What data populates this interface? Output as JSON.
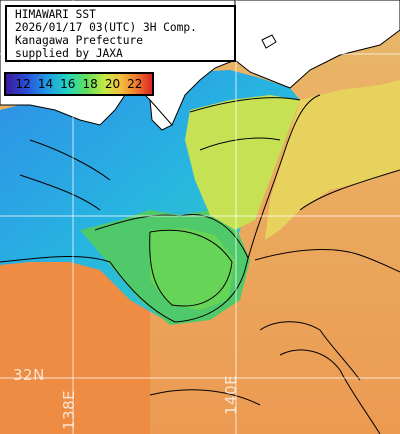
{
  "title": {
    "lines": [
      "HIMAWARI SST",
      "2026/01/17 03(UTC) 3H Comp.",
      "Kanagawa Prefecture",
      "supplied by JAXA"
    ]
  },
  "scale": {
    "labels": [
      "12",
      "14",
      "16",
      "18",
      "20",
      "22"
    ],
    "colors": [
      "#3b1a99",
      "#2a4fd8",
      "#1f9be6",
      "#24d3c2",
      "#5ee05a",
      "#c8e844",
      "#f2c23e",
      "#f0842e",
      "#e02424"
    ]
  },
  "grid_labels": {
    "lat": [
      "32N"
    ],
    "lon": [
      "138E",
      "140E"
    ]
  },
  "map": {
    "land_color": "#ffffff",
    "contour_color": "#000000",
    "grid_color": "#ffffff"
  }
}
